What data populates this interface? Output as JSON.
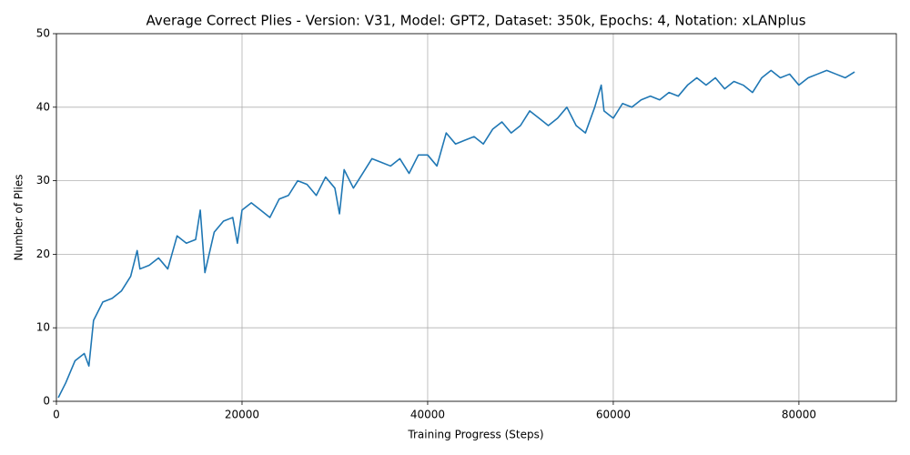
{
  "chart_data": {
    "type": "line",
    "title": "Average Correct Plies - Version: V31, Model: GPT2, Dataset: 350k, Epochs: 4, Notation: xLANplus",
    "x_label": "Training Progress (Steps)",
    "y_label": "Number of Plies",
    "x": [
      200,
      1000,
      2000,
      3000,
      3500,
      4000,
      5000,
      6000,
      7000,
      8000,
      8700,
      9000,
      10000,
      11000,
      12000,
      13000,
      14000,
      15000,
      15500,
      16000,
      17000,
      18000,
      19000,
      19500,
      20000,
      21000,
      22000,
      23000,
      24000,
      25000,
      26000,
      27000,
      28000,
      29000,
      30000,
      30500,
      31000,
      32000,
      33000,
      34000,
      35000,
      36000,
      37000,
      38000,
      39000,
      40000,
      41000,
      42000,
      43000,
      44000,
      45000,
      46000,
      47000,
      48000,
      49000,
      50000,
      51000,
      52000,
      53000,
      54000,
      55000,
      56000,
      57000,
      58000,
      58700,
      59000,
      60000,
      61000,
      62000,
      63000,
      64000,
      65000,
      66000,
      67000,
      68000,
      69000,
      70000,
      71000,
      72000,
      73000,
      74000,
      75000,
      76000,
      77000,
      78000,
      79000,
      80000,
      81000,
      82000,
      83000,
      84000,
      85000,
      86000
    ],
    "series": [
      {
        "name": "Average Correct Plies",
        "color": "#1f77b4",
        "values": [
          0.5,
          2.5,
          5.5,
          6.5,
          4.8,
          11,
          13.5,
          14,
          15,
          17,
          20.5,
          18,
          18.5,
          19.5,
          18,
          22.5,
          21.5,
          22,
          26,
          17.5,
          23,
          24.5,
          25,
          21.5,
          26,
          27,
          26,
          25,
          27.5,
          28,
          30,
          29.5,
          28,
          30.5,
          29,
          25.5,
          31.5,
          29,
          31,
          33,
          32.5,
          32,
          33,
          31,
          33.5,
          33.5,
          32,
          36.5,
          35,
          35.5,
          36,
          35,
          37,
          38,
          36.5,
          37.5,
          39.5,
          38.5,
          37.5,
          38.5,
          40,
          37.5,
          36.5,
          40,
          43,
          39.5,
          38.5,
          40.5,
          40,
          41,
          41.5,
          41,
          42,
          41.5,
          43,
          44,
          43,
          44,
          42.5,
          43.5,
          43,
          42,
          44,
          45,
          44,
          44.5,
          43,
          44,
          44.5,
          45,
          44.5,
          44,
          44.8
        ]
      }
    ],
    "xlim": [
      0,
      90500
    ],
    "ylim": [
      0,
      50
    ],
    "xticks": [
      0,
      20000,
      40000,
      60000,
      80000
    ],
    "yticks": [
      0,
      10,
      20,
      30,
      40,
      50
    ],
    "grid": true
  }
}
